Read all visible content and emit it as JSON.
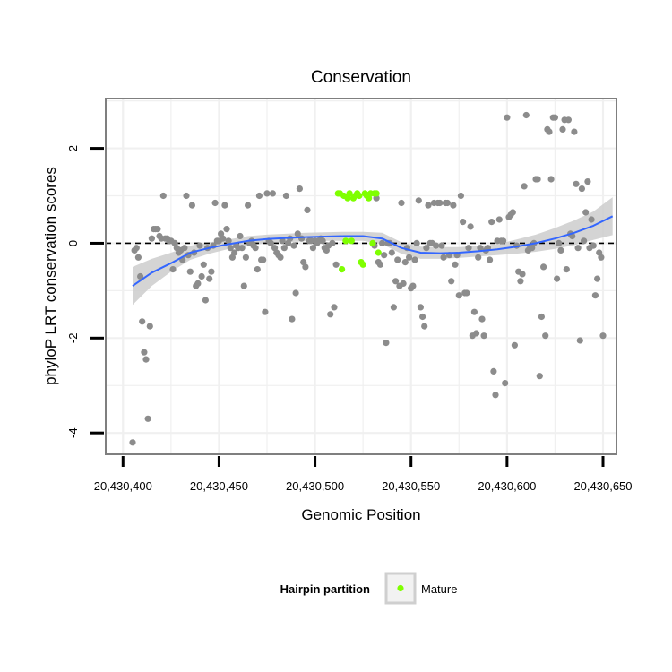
{
  "chart_data": {
    "type": "scatter",
    "title": "Conservation",
    "xlabel": "Genomic Position",
    "ylabel": "phyloP LRT conservation scores",
    "xlim": [
      20430391,
      20430657
    ],
    "ylim": [
      -4.45,
      3.05
    ],
    "x_ticks": [
      20430400,
      20430450,
      20430500,
      20430550,
      20430600,
      20430650
    ],
    "x_tick_labels": [
      "20,430,400",
      "20,430,450",
      "20,430,500",
      "20,430,550",
      "20,430,600",
      "20,430,650"
    ],
    "y_ticks": [
      2,
      0,
      -2,
      -4
    ],
    "y_tick_labels": [
      "2",
      "0",
      "-2",
      "-4"
    ],
    "reference_line": 0,
    "grid": true,
    "legend": {
      "title": "Hairpin partition",
      "position": "bottom",
      "entries": [
        {
          "label": "Mature",
          "color": "#7fff00"
        }
      ]
    },
    "colors": {
      "other_points": "#8c8c8c",
      "mature_points": "#7fff00",
      "smooth_line": "#3366ff",
      "confidence_band": "#cccccc",
      "panel_border": "#7f7f7f",
      "grid": "#f0f0f0"
    },
    "series": [
      {
        "color": "#8c8c8c",
        "points": [
          [
            20430405,
            -4.2
          ],
          [
            20430406,
            -0.15
          ],
          [
            20430407,
            -0.1
          ],
          [
            20430408,
            -0.3
          ],
          [
            20430409,
            -0.7
          ],
          [
            20430410,
            -1.65
          ],
          [
            20430411,
            -2.3
          ],
          [
            20430412,
            -2.45
          ],
          [
            20430413,
            -3.7
          ],
          [
            20430414,
            -1.75
          ],
          [
            20430415,
            0.1
          ],
          [
            20430416,
            0.3
          ],
          [
            20430417,
            0.3
          ],
          [
            20430418,
            0.3
          ],
          [
            20430419,
            0.15
          ],
          [
            20430420,
            0.1
          ],
          [
            20430421,
            1.0
          ],
          [
            20430422,
            0.1
          ],
          [
            20430423,
            0.1
          ],
          [
            20430424,
            0.05
          ],
          [
            20430425,
            0.05
          ],
          [
            20430426,
            -0.55
          ],
          [
            20430427,
            0.0
          ],
          [
            20430428,
            -0.1
          ],
          [
            20430429,
            -0.2
          ],
          [
            20430430,
            -0.15
          ],
          [
            20430431,
            -0.35
          ],
          [
            20430432,
            -0.1
          ],
          [
            20430433,
            1.0
          ],
          [
            20430434,
            -0.25
          ],
          [
            20430435,
            -0.6
          ],
          [
            20430436,
            0.8
          ],
          [
            20430437,
            -0.2
          ],
          [
            20430438,
            -0.9
          ],
          [
            20430439,
            -0.85
          ],
          [
            20430440,
            -0.05
          ],
          [
            20430441,
            -0.7
          ],
          [
            20430442,
            -0.45
          ],
          [
            20430443,
            -1.2
          ],
          [
            20430444,
            -0.1
          ],
          [
            20430445,
            -0.75
          ],
          [
            20430446,
            -0.6
          ],
          [
            20430447,
            -0.05
          ],
          [
            20430448,
            0.85
          ],
          [
            20430449,
            0.05
          ],
          [
            20430450,
            0.05
          ],
          [
            20430451,
            0.2
          ],
          [
            20430452,
            0.1
          ],
          [
            20430453,
            0.8
          ],
          [
            20430454,
            0.3
          ],
          [
            20430455,
            0.05
          ],
          [
            20430456,
            -0.1
          ],
          [
            20430457,
            -0.3
          ],
          [
            20430458,
            -0.2
          ],
          [
            20430459,
            -0.05
          ],
          [
            20430460,
            -0.1
          ],
          [
            20430461,
            0.15
          ],
          [
            20430462,
            -0.1
          ],
          [
            20430463,
            -0.9
          ],
          [
            20430464,
            -0.3
          ],
          [
            20430465,
            0.8
          ],
          [
            20430466,
            0.0
          ],
          [
            20430467,
            0.05
          ],
          [
            20430468,
            -0.05
          ],
          [
            20430469,
            -0.1
          ],
          [
            20430470,
            -0.55
          ],
          [
            20430471,
            1.0
          ],
          [
            20430472,
            -0.35
          ],
          [
            20430473,
            -0.35
          ],
          [
            20430474,
            -1.45
          ],
          [
            20430475,
            1.05
          ],
          [
            20430476,
            0.05
          ],
          [
            20430477,
            0.0
          ],
          [
            20430478,
            1.05
          ],
          [
            20430479,
            -0.1
          ],
          [
            20430480,
            -0.2
          ],
          [
            20430481,
            -0.25
          ],
          [
            20430482,
            -0.3
          ],
          [
            20430483,
            0.05
          ],
          [
            20430484,
            -0.1
          ],
          [
            20430485,
            1.0
          ],
          [
            20430486,
            0.0
          ],
          [
            20430487,
            0.1
          ],
          [
            20430488,
            -1.6
          ],
          [
            20430489,
            -0.05
          ],
          [
            20430490,
            -1.05
          ],
          [
            20430491,
            0.2
          ],
          [
            20430492,
            1.15
          ],
          [
            20430493,
            0.1
          ],
          [
            20430494,
            -0.4
          ],
          [
            20430495,
            -0.5
          ],
          [
            20430496,
            0.7
          ],
          [
            20430497,
            0.05
          ],
          [
            20430498,
            0.05
          ],
          [
            20430499,
            -0.1
          ],
          [
            20430500,
            0.05
          ],
          [
            20430501,
            0.0
          ],
          [
            20430502,
            0.05
          ],
          [
            20430503,
            0.1
          ],
          [
            20430504,
            0.05
          ],
          [
            20430505,
            -0.1
          ],
          [
            20430506,
            -0.15
          ],
          [
            20430507,
            -0.05
          ],
          [
            20430508,
            -1.5
          ],
          [
            20430509,
            0.0
          ],
          [
            20430510,
            -1.35
          ],
          [
            20430511,
            -0.45
          ],
          [
            20430531,
            -0.05
          ],
          [
            20430532,
            0.95
          ],
          [
            20430533,
            -0.4
          ],
          [
            20430534,
            -0.45
          ],
          [
            20430535,
            0.0
          ],
          [
            20430536,
            -0.25
          ],
          [
            20430537,
            -2.1
          ],
          [
            20430538,
            0.0
          ],
          [
            20430539,
            0.0
          ],
          [
            20430540,
            -0.2
          ],
          [
            20430541,
            -1.35
          ],
          [
            20430542,
            -0.8
          ],
          [
            20430543,
            -0.35
          ],
          [
            20430544,
            -0.9
          ],
          [
            20430545,
            0.85
          ],
          [
            20430546,
            -0.85
          ],
          [
            20430547,
            -0.4
          ],
          [
            20430548,
            -0.1
          ],
          [
            20430549,
            -0.3
          ],
          [
            20430550,
            -0.95
          ],
          [
            20430551,
            -0.9
          ],
          [
            20430552,
            -0.35
          ],
          [
            20430553,
            0.0
          ],
          [
            20430554,
            0.9
          ],
          [
            20430555,
            -1.35
          ],
          [
            20430556,
            -1.55
          ],
          [
            20430557,
            -1.75
          ],
          [
            20430558,
            -0.1
          ],
          [
            20430559,
            0.8
          ],
          [
            20430560,
            0.0
          ],
          [
            20430561,
            0.0
          ],
          [
            20430562,
            0.85
          ],
          [
            20430563,
            -0.05
          ],
          [
            20430564,
            0.85
          ],
          [
            20430565,
            0.85
          ],
          [
            20430566,
            -0.05
          ],
          [
            20430567,
            -0.3
          ],
          [
            20430568,
            0.85
          ],
          [
            20430569,
            0.85
          ],
          [
            20430570,
            -0.25
          ],
          [
            20430571,
            -0.8
          ],
          [
            20430572,
            0.8
          ],
          [
            20430573,
            -0.45
          ],
          [
            20430574,
            -0.25
          ],
          [
            20430575,
            -1.1
          ],
          [
            20430576,
            1.0
          ],
          [
            20430577,
            0.45
          ],
          [
            20430578,
            -1.05
          ],
          [
            20430579,
            -1.05
          ],
          [
            20430580,
            -0.1
          ],
          [
            20430581,
            0.35
          ],
          [
            20430582,
            -1.95
          ],
          [
            20430583,
            -1.45
          ],
          [
            20430584,
            -1.9
          ],
          [
            20430585,
            -0.3
          ],
          [
            20430586,
            -0.1
          ],
          [
            20430587,
            -1.6
          ],
          [
            20430588,
            -1.95
          ],
          [
            20430589,
            -0.15
          ],
          [
            20430590,
            -0.1
          ],
          [
            20430591,
            -0.35
          ],
          [
            20430592,
            0.45
          ],
          [
            20430593,
            -2.7
          ],
          [
            20430594,
            -3.2
          ],
          [
            20430595,
            0.05
          ],
          [
            20430596,
            0.5
          ],
          [
            20430597,
            0.05
          ],
          [
            20430598,
            0.05
          ],
          [
            20430599,
            -2.95
          ],
          [
            20430600,
            2.65
          ],
          [
            20430601,
            0.55
          ],
          [
            20430602,
            0.6
          ],
          [
            20430603,
            0.65
          ],
          [
            20430604,
            -2.15
          ],
          [
            20430605,
            -0.05
          ],
          [
            20430606,
            -0.6
          ],
          [
            20430607,
            -0.8
          ],
          [
            20430608,
            -0.65
          ],
          [
            20430609,
            1.2
          ],
          [
            20430610,
            2.7
          ],
          [
            20430611,
            -0.15
          ],
          [
            20430612,
            -0.1
          ],
          [
            20430613,
            -0.1
          ],
          [
            20430614,
            0.0
          ],
          [
            20430615,
            1.35
          ],
          [
            20430616,
            1.35
          ],
          [
            20430617,
            -2.8
          ],
          [
            20430618,
            -1.55
          ],
          [
            20430619,
            -0.5
          ],
          [
            20430620,
            -1.95
          ],
          [
            20430621,
            2.4
          ],
          [
            20430622,
            2.35
          ],
          [
            20430623,
            1.35
          ],
          [
            20430624,
            2.65
          ],
          [
            20430625,
            2.65
          ],
          [
            20430626,
            -0.75
          ],
          [
            20430627,
            0.0
          ],
          [
            20430628,
            -0.15
          ],
          [
            20430629,
            2.4
          ],
          [
            20430630,
            2.6
          ],
          [
            20430631,
            -0.55
          ],
          [
            20430632,
            2.6
          ],
          [
            20430633,
            0.2
          ],
          [
            20430634,
            0.15
          ],
          [
            20430635,
            2.35
          ],
          [
            20430636,
            1.25
          ],
          [
            20430637,
            -0.1
          ],
          [
            20430638,
            -2.05
          ],
          [
            20430639,
            1.15
          ],
          [
            20430640,
            0.05
          ],
          [
            20430641,
            0.65
          ],
          [
            20430642,
            1.3
          ],
          [
            20430643,
            -0.1
          ],
          [
            20430644,
            0.5
          ],
          [
            20430645,
            -0.05
          ],
          [
            20430646,
            -1.1
          ],
          [
            20430647,
            -0.75
          ],
          [
            20430648,
            -0.2
          ],
          [
            20430649,
            -0.3
          ],
          [
            20430650,
            -1.95
          ]
        ]
      },
      {
        "name": "Mature",
        "color": "#7fff00",
        "points": [
          [
            20430512,
            1.05
          ],
          [
            20430513,
            1.05
          ],
          [
            20430514,
            -0.55
          ],
          [
            20430515,
            1.0
          ],
          [
            20430516,
            0.05
          ],
          [
            20430517,
            0.95
          ],
          [
            20430518,
            1.05
          ],
          [
            20430519,
            0.05
          ],
          [
            20430520,
            0.95
          ],
          [
            20430521,
            1.0
          ],
          [
            20430522,
            1.05
          ],
          [
            20430523,
            1.0
          ],
          [
            20430524,
            -0.4
          ],
          [
            20430525,
            -0.45
          ],
          [
            20430526,
            1.05
          ],
          [
            20430527,
            1.0
          ],
          [
            20430528,
            0.95
          ],
          [
            20430529,
            1.05
          ],
          [
            20430530,
            0.0
          ],
          [
            20430531,
            1.05
          ],
          [
            20430532,
            1.05
          ],
          [
            20430533,
            -0.2
          ]
        ]
      }
    ],
    "smooth": {
      "x": [
        20430405,
        20430415,
        20430425,
        20430435,
        20430445,
        20430455,
        20430465,
        20430475,
        20430485,
        20430495,
        20430505,
        20430515,
        20430525,
        20430535,
        20430545,
        20430555,
        20430565,
        20430575,
        20430585,
        20430595,
        20430605,
        20430615,
        20430625,
        20430635,
        20430645,
        20430655
      ],
      "y": [
        -0.9,
        -0.62,
        -0.42,
        -0.2,
        -0.1,
        -0.02,
        0.05,
        0.09,
        0.11,
        0.13,
        0.14,
        0.15,
        0.15,
        0.1,
        -0.1,
        -0.2,
        -0.21,
        -0.2,
        -0.17,
        -0.13,
        -0.07,
        0.0,
        0.1,
        0.22,
        0.37,
        0.57
      ],
      "lower": [
        -1.3,
        -0.9,
        -0.6,
        -0.35,
        -0.22,
        -0.12,
        -0.05,
        0.0,
        0.02,
        0.04,
        0.05,
        0.05,
        0.05,
        -0.02,
        -0.22,
        -0.33,
        -0.33,
        -0.31,
        -0.28,
        -0.25,
        -0.22,
        -0.18,
        -0.12,
        -0.04,
        0.07,
        0.17
      ],
      "upper": [
        -0.5,
        -0.33,
        -0.2,
        -0.05,
        0.02,
        0.08,
        0.15,
        0.18,
        0.2,
        0.22,
        0.23,
        0.24,
        0.24,
        0.22,
        0.02,
        -0.07,
        -0.08,
        -0.08,
        -0.06,
        -0.02,
        0.08,
        0.18,
        0.32,
        0.48,
        0.67,
        0.97
      ]
    }
  }
}
